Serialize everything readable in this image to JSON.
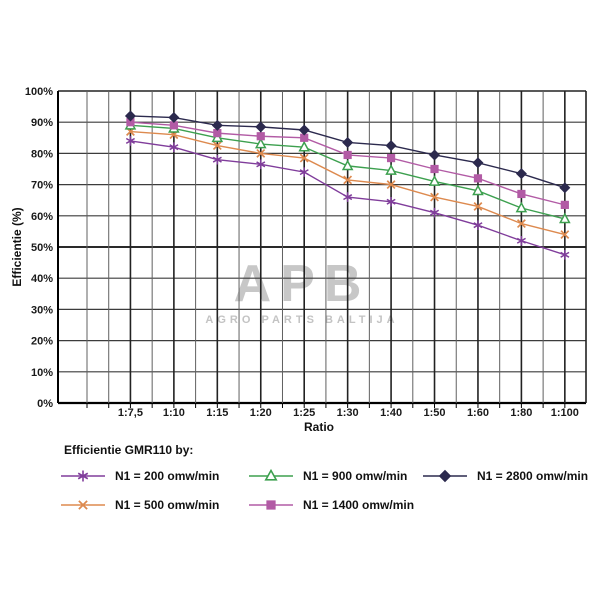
{
  "watermark": {
    "line1": "APB",
    "line2": "AGRO PARTS BALTIJA"
  },
  "legend": {
    "title": "Efficientie GMR110 by:"
  },
  "chart_data": {
    "type": "line",
    "title": "",
    "xlabel": "Ratio",
    "ylabel": "Efficientie (%)",
    "categories": [
      "1:7,5",
      "1:10",
      "1:15",
      "1:20",
      "1:25",
      "1:30",
      "1:40",
      "1:50",
      "1:60",
      "1:80",
      "1:100"
    ],
    "y_ticks": [
      "0%",
      "10%",
      "20%",
      "30%",
      "40%",
      "50%",
      "60%",
      "70%",
      "80%",
      "90%",
      "100%"
    ],
    "ylim": [
      0,
      100
    ],
    "grid": true,
    "legend_position": "bottom",
    "series": [
      {
        "name": "N1 = 200 omw/min",
        "marker": "asterisk",
        "color": "#803d9b",
        "values": [
          84,
          82,
          78,
          76.5,
          74,
          66,
          64.5,
          61,
          57,
          52,
          47.5
        ]
      },
      {
        "name": "N1 = 500 omw/min",
        "marker": "x",
        "color": "#dd8a4f",
        "values": [
          87,
          86,
          82.5,
          80,
          78.5,
          71.5,
          70,
          66,
          63,
          57.5,
          54
        ]
      },
      {
        "name": "N1 = 900 omw/min",
        "marker": "triangle-open",
        "color": "#3da04f",
        "values": [
          89,
          88,
          85,
          83,
          82,
          76,
          74.5,
          71,
          68,
          62.5,
          59
        ]
      },
      {
        "name": "N1 = 1400 omw/min",
        "marker": "square",
        "color": "#b25ba5",
        "values": [
          90,
          89,
          86.5,
          85.5,
          85,
          79.5,
          78.5,
          75,
          72,
          67,
          63.5
        ]
      },
      {
        "name": "N1 = 2800 omw/min",
        "marker": "diamond",
        "color": "#2c2a4e",
        "values": [
          92,
          91.5,
          89,
          88.5,
          87.5,
          83.5,
          82.5,
          79.5,
          77,
          73.5,
          69
        ]
      }
    ],
    "legend_rows": [
      [
        0,
        2,
        4
      ],
      [
        1,
        3
      ]
    ]
  }
}
